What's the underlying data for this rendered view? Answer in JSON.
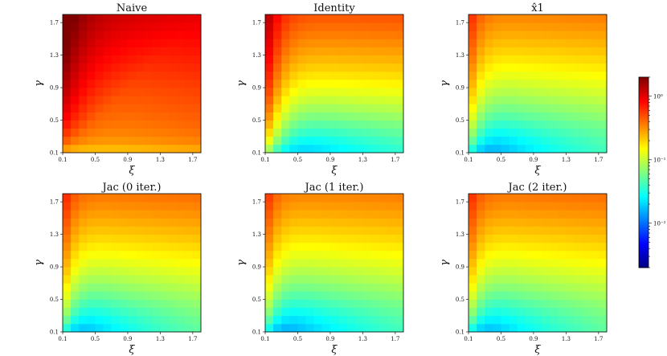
{
  "figure": {
    "colormap": "jet",
    "color_scale": "log"
  },
  "chart_data": [
    {
      "type": "heatmap",
      "title": "Naive",
      "xlabel": "ξ",
      "ylabel": "γ",
      "x_ticks": [
        "0.1",
        "0.5",
        "0.9",
        "1.3",
        "1.7"
      ],
      "y_ticks": [
        "0.1",
        "0.5",
        "0.9",
        "1.3",
        "1.7"
      ],
      "xlim": [
        0.1,
        1.8
      ],
      "ylim": [
        0.1,
        1.8
      ],
      "grid_size": 17,
      "model": {
        "base": 0.3,
        "slope_gamma": 0.18,
        "slope_xi": 0.06,
        "edge_boost": 1.0,
        "edge_decay": 0.2,
        "bottom_drop": 0.45,
        "diag_boost": 0.2
      }
    },
    {
      "type": "heatmap",
      "title": "Identity",
      "xlabel": "ξ",
      "ylabel": "γ",
      "x_ticks": [
        "0.1",
        "0.5",
        "0.9",
        "1.3",
        "1.7"
      ],
      "y_ticks": [
        "0.1",
        "0.5",
        "0.9",
        "1.3",
        "1.7"
      ],
      "xlim": [
        0.1,
        1.8
      ],
      "ylim": [
        0.1,
        1.8
      ],
      "grid_size": 17,
      "model": {
        "base": 0.008,
        "slope_gamma": 0.14,
        "slope_xi": 0.015,
        "edge_boost": 0.7,
        "edge_decay": 0.12,
        "bottom_drop": 0.0,
        "diag_boost": 0.0
      }
    },
    {
      "type": "heatmap",
      "title": "x̂1",
      "xlabel": "ξ",
      "ylabel": "γ",
      "x_ticks": [
        "0.1",
        "0.5",
        "0.9",
        "1.3",
        "1.7"
      ],
      "y_ticks": [
        "0.1",
        "0.5",
        "0.9",
        "1.3",
        "1.7"
      ],
      "xlim": [
        0.1,
        1.8
      ],
      "ylim": [
        0.1,
        1.8
      ],
      "grid_size": 17,
      "model": {
        "base": 0.005,
        "slope_gamma": 0.1,
        "slope_xi": 0.02,
        "edge_boost": 0.25,
        "edge_decay": 0.1,
        "bottom_drop": 0.0,
        "diag_boost": 0.0
      }
    },
    {
      "type": "heatmap",
      "title": "Jac (0 iter.)",
      "xlabel": "ξ",
      "ylabel": "γ",
      "x_ticks": [
        "0.1",
        "0.5",
        "0.9",
        "1.3",
        "1.7"
      ],
      "y_ticks": [
        "0.1",
        "0.5",
        "0.9",
        "1.3",
        "1.7"
      ],
      "xlim": [
        0.1,
        1.8
      ],
      "ylim": [
        0.1,
        1.8
      ],
      "grid_size": 17,
      "model": {
        "base": 0.005,
        "slope_gamma": 0.11,
        "slope_xi": 0.025,
        "edge_boost": 0.25,
        "edge_decay": 0.1,
        "bottom_drop": 0.0,
        "diag_boost": 0.0
      }
    },
    {
      "type": "heatmap",
      "title": "Jac (1 iter.)",
      "xlabel": "ξ",
      "ylabel": "γ",
      "x_ticks": [
        "0.1",
        "0.5",
        "0.9",
        "1.3",
        "1.7"
      ],
      "y_ticks": [
        "0.1",
        "0.5",
        "0.9",
        "1.3",
        "1.7"
      ],
      "xlim": [
        0.1,
        1.8
      ],
      "ylim": [
        0.1,
        1.8
      ],
      "grid_size": 17,
      "model": {
        "base": 0.005,
        "slope_gamma": 0.1,
        "slope_xi": 0.02,
        "edge_boost": 0.22,
        "edge_decay": 0.1,
        "bottom_drop": 0.0,
        "diag_boost": 0.0
      }
    },
    {
      "type": "heatmap",
      "title": "Jac (2 iter.)",
      "xlabel": "ξ",
      "ylabel": "γ",
      "x_ticks": [
        "0.1",
        "0.5",
        "0.9",
        "1.3",
        "1.7"
      ],
      "y_ticks": [
        "0.1",
        "0.5",
        "0.9",
        "1.3",
        "1.7"
      ],
      "xlim": [
        0.1,
        1.8
      ],
      "ylim": [
        0.1,
        1.8
      ],
      "grid_size": 17,
      "model": {
        "base": 0.005,
        "slope_gamma": 0.11,
        "slope_xi": 0.025,
        "edge_boost": 0.22,
        "edge_decay": 0.1,
        "bottom_drop": 0.0,
        "diag_boost": 0.0
      }
    }
  ],
  "colorbar": {
    "ticks": [
      {
        "label": "10⁰",
        "value": 1
      },
      {
        "label": "10⁻¹",
        "value": 0.1
      },
      {
        "label": "10⁻²",
        "value": 0.01
      }
    ],
    "range": [
      0.002,
      2.0
    ]
  }
}
